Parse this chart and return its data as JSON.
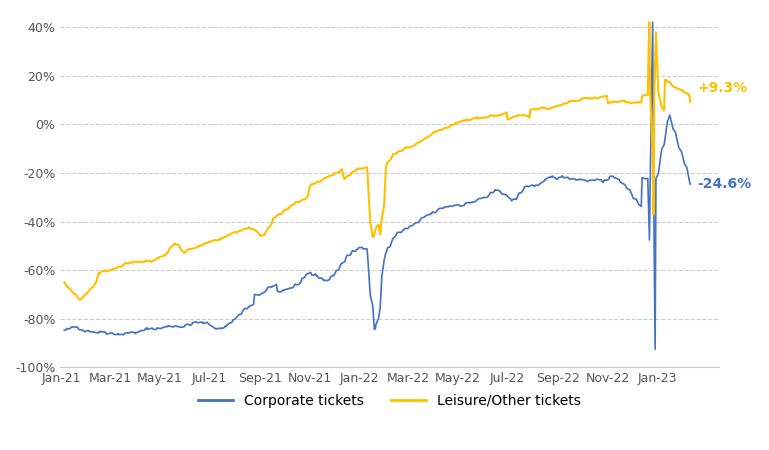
{
  "title": "",
  "xlabel": "",
  "ylabel": "",
  "ylim": [
    -1.0,
    0.45
  ],
  "yticks": [
    -1.0,
    -0.8,
    -0.6,
    -0.4,
    -0.2,
    0.0,
    0.2,
    0.4
  ],
  "ytick_labels": [
    "-100%",
    "-80%",
    "-60%",
    "-40%",
    "-20%",
    "0%",
    "20%",
    "40%"
  ],
  "xtick_labels": [
    "Jan-21",
    "Mar-21",
    "May-21",
    "Jul-21",
    "Sep-21",
    "Nov-21",
    "Jan-22",
    "Mar-22",
    "May-22",
    "Jul-22",
    "Sep-22",
    "Nov-22",
    "Jan-23"
  ],
  "corporate_color": "#4472C4",
  "leisure_color": "#FFC000",
  "annotation_corporate": "-24.6%",
  "annotation_leisure": "+9.3%",
  "legend_corporate": "Corporate tickets",
  "legend_leisure": "Leisure/Other tickets"
}
